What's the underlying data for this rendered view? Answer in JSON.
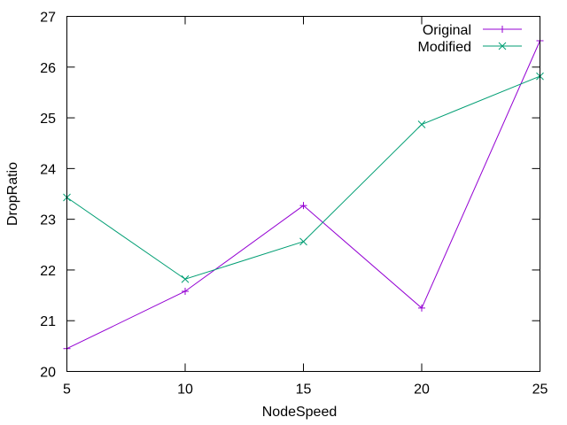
{
  "chart_data": {
    "type": "line",
    "xlabel": "NodeSpeed",
    "ylabel": "DropRatio",
    "xlim": [
      5,
      25
    ],
    "ylim": [
      20,
      27
    ],
    "x_ticks": [
      5,
      10,
      15,
      20,
      25
    ],
    "y_ticks": [
      20,
      21,
      22,
      23,
      24,
      25,
      26,
      27
    ],
    "x": [
      5,
      10,
      15,
      20,
      25
    ],
    "grid": false,
    "legend_position": "top-right",
    "series": [
      {
        "name": "Original",
        "color": "#9400d3",
        "marker": "plus",
        "values": [
          20.45,
          21.58,
          23.27,
          21.25,
          26.52
        ]
      },
      {
        "name": "Modified",
        "color": "#009e73",
        "marker": "cross",
        "values": [
          23.43,
          21.82,
          22.56,
          24.87,
          25.82
        ]
      }
    ]
  }
}
